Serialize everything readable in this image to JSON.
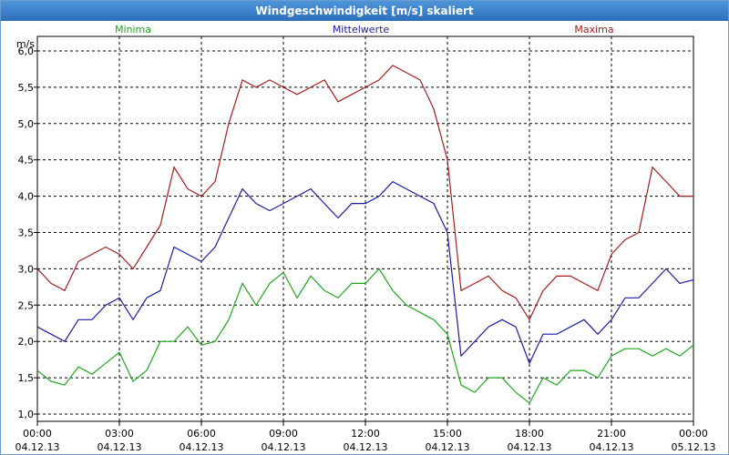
{
  "window": {
    "title": "Windgeschwindigkeit [m/s] skaliert"
  },
  "chart_data": {
    "type": "line",
    "title": "Windgeschwindigkeit [m/s] skaliert",
    "ylabel": "m/s",
    "ylim": [
      0.9,
      6.2
    ],
    "xlim": [
      0,
      24
    ],
    "grid": true,
    "legend_position": "top",
    "y_ticks": [
      "1,0",
      "1,5",
      "2,0",
      "2,5",
      "3,0",
      "3,5",
      "4,0",
      "4,5",
      "5,0",
      "5,5",
      "6,0"
    ],
    "x_ticks": [
      {
        "time": "00:00",
        "date": "04.12.13"
      },
      {
        "time": "03:00",
        "date": "04.12.13"
      },
      {
        "time": "06:00",
        "date": "04.12.13"
      },
      {
        "time": "09:00",
        "date": "04.12.13"
      },
      {
        "time": "12:00",
        "date": "04.12.13"
      },
      {
        "time": "15:00",
        "date": "04.12.13"
      },
      {
        "time": "18:00",
        "date": "04.12.13"
      },
      {
        "time": "21:00",
        "date": "04.12.13"
      },
      {
        "time": "00:00",
        "date": "05.12.13"
      }
    ],
    "x": [
      0,
      0.5,
      1,
      1.5,
      2,
      2.5,
      3,
      3.5,
      4,
      4.5,
      5,
      5.5,
      6,
      6.5,
      7,
      7.5,
      8,
      8.5,
      9,
      9.5,
      10,
      10.5,
      11,
      11.5,
      12,
      12.5,
      13,
      13.5,
      14,
      14.5,
      15,
      15.5,
      16,
      16.5,
      17,
      17.5,
      18,
      18.5,
      19,
      19.5,
      20,
      20.5,
      21,
      21.5,
      22,
      22.5,
      23,
      23.5,
      24
    ],
    "series": [
      {
        "name": "Minima",
        "color": "#1fa81f",
        "values": [
          1.6,
          1.45,
          1.4,
          1.65,
          1.55,
          1.7,
          1.85,
          1.45,
          1.6,
          2.0,
          2.0,
          2.2,
          1.95,
          2.0,
          2.3,
          2.8,
          2.5,
          2.8,
          2.95,
          2.6,
          2.9,
          2.7,
          2.6,
          2.8,
          2.8,
          3.0,
          2.7,
          2.5,
          2.4,
          2.3,
          2.1,
          1.4,
          1.3,
          1.5,
          1.5,
          1.3,
          1.15,
          1.5,
          1.4,
          1.6,
          1.6,
          1.5,
          1.8,
          1.9,
          1.9,
          1.8,
          1.9,
          1.8,
          1.95
        ]
      },
      {
        "name": "Mittelwerte",
        "color": "#1c1ca8",
        "values": [
          2.2,
          2.1,
          2.0,
          2.3,
          2.3,
          2.5,
          2.6,
          2.3,
          2.6,
          2.7,
          3.3,
          3.2,
          3.1,
          3.3,
          3.7,
          4.1,
          3.9,
          3.8,
          3.9,
          4.0,
          4.1,
          3.9,
          3.7,
          3.9,
          3.9,
          4.0,
          4.2,
          4.1,
          4.0,
          3.9,
          3.5,
          1.8,
          2.0,
          2.2,
          2.3,
          2.2,
          1.7,
          2.1,
          2.1,
          2.2,
          2.3,
          2.1,
          2.3,
          2.6,
          2.6,
          2.8,
          3.0,
          2.8,
          2.85
        ]
      },
      {
        "name": "Maxima",
        "color": "#a81c1c",
        "values": [
          3.0,
          2.8,
          2.7,
          3.1,
          3.2,
          3.3,
          3.2,
          3.0,
          3.3,
          3.6,
          4.4,
          4.1,
          4.0,
          4.2,
          5.0,
          5.6,
          5.5,
          5.6,
          5.5,
          5.4,
          5.5,
          5.6,
          5.3,
          5.4,
          5.5,
          5.6,
          5.8,
          5.7,
          5.6,
          5.2,
          4.5,
          2.7,
          2.8,
          2.9,
          2.7,
          2.6,
          2.3,
          2.7,
          2.9,
          2.9,
          2.8,
          2.7,
          3.2,
          3.4,
          3.5,
          4.4,
          4.2,
          4.0,
          4.0
        ]
      }
    ]
  }
}
